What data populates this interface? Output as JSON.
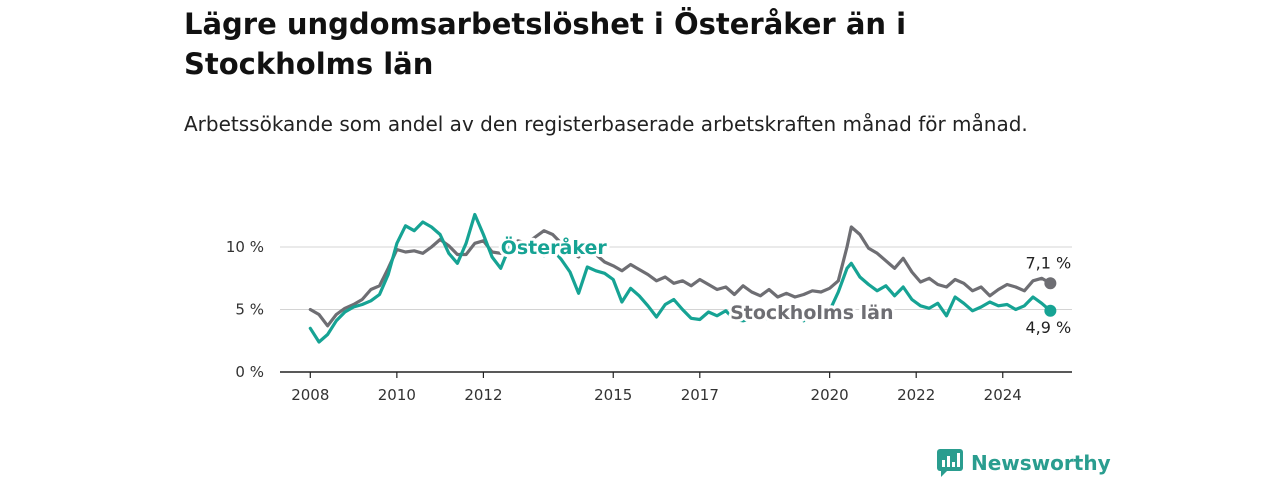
{
  "title": "Lägre ungdomsarbetslöshet i Österåker än i Stockholms län",
  "subtitle": "Arbetssökande som andel av den registerbaserade arbetskraften månad för månad.",
  "brand": {
    "name": "Newsworthy",
    "icon": "newsworthy-logo-icon",
    "color": "#2a9d8f"
  },
  "chart_data": {
    "type": "line",
    "x_axis": {
      "range": [
        2007.3,
        2025.6
      ],
      "ticks": [
        {
          "value": 2008,
          "label": "2008"
        },
        {
          "value": 2010,
          "label": "2010"
        },
        {
          "value": 2012,
          "label": "2012"
        },
        {
          "value": 2015,
          "label": "2015"
        },
        {
          "value": 2017,
          "label": "2017"
        },
        {
          "value": 2020,
          "label": "2020"
        },
        {
          "value": 2022,
          "label": "2022"
        },
        {
          "value": 2024,
          "label": "2024"
        }
      ]
    },
    "y_axis": {
      "range": [
        0,
        13.2
      ],
      "ticks": [
        {
          "value": 0,
          "label": "0 %"
        },
        {
          "value": 5,
          "label": "5 %"
        },
        {
          "value": 10,
          "label": "10 %"
        }
      ],
      "grid": true
    },
    "series": [
      {
        "name": "Stockholms län",
        "color": "#6e6e73",
        "end_label": "7,1 %",
        "points": [
          [
            2008.0,
            5.0
          ],
          [
            2008.2,
            4.6
          ],
          [
            2008.4,
            3.7
          ],
          [
            2008.6,
            4.6
          ],
          [
            2008.8,
            5.1
          ],
          [
            2009.0,
            5.4
          ],
          [
            2009.2,
            5.8
          ],
          [
            2009.4,
            6.6
          ],
          [
            2009.6,
            6.9
          ],
          [
            2009.8,
            8.3
          ],
          [
            2010.0,
            9.8
          ],
          [
            2010.2,
            9.6
          ],
          [
            2010.4,
            9.7
          ],
          [
            2010.6,
            9.5
          ],
          [
            2010.8,
            10.0
          ],
          [
            2011.0,
            10.6
          ],
          [
            2011.2,
            10.1
          ],
          [
            2011.4,
            9.4
          ],
          [
            2011.6,
            9.4
          ],
          [
            2011.8,
            10.3
          ],
          [
            2012.0,
            10.5
          ],
          [
            2012.2,
            9.6
          ],
          [
            2012.4,
            9.5
          ],
          [
            2012.6,
            9.8
          ],
          [
            2012.8,
            10.5
          ],
          [
            2013.0,
            10.3
          ],
          [
            2013.2,
            10.8
          ],
          [
            2013.4,
            11.3
          ],
          [
            2013.6,
            11.0
          ],
          [
            2013.8,
            10.3
          ],
          [
            2014.0,
            9.7
          ],
          [
            2014.2,
            9.2
          ],
          [
            2014.4,
            9.9
          ],
          [
            2014.6,
            9.4
          ],
          [
            2014.8,
            8.8
          ],
          [
            2015.0,
            8.5
          ],
          [
            2015.2,
            8.1
          ],
          [
            2015.4,
            8.6
          ],
          [
            2015.6,
            8.2
          ],
          [
            2015.8,
            7.8
          ],
          [
            2016.0,
            7.3
          ],
          [
            2016.2,
            7.6
          ],
          [
            2016.4,
            7.1
          ],
          [
            2016.6,
            7.3
          ],
          [
            2016.8,
            6.9
          ],
          [
            2017.0,
            7.4
          ],
          [
            2017.2,
            7.0
          ],
          [
            2017.4,
            6.6
          ],
          [
            2017.6,
            6.8
          ],
          [
            2017.8,
            6.2
          ],
          [
            2018.0,
            6.9
          ],
          [
            2018.2,
            6.4
          ],
          [
            2018.4,
            6.1
          ],
          [
            2018.6,
            6.6
          ],
          [
            2018.8,
            6.0
          ],
          [
            2019.0,
            6.3
          ],
          [
            2019.2,
            6.0
          ],
          [
            2019.4,
            6.2
          ],
          [
            2019.6,
            6.5
          ],
          [
            2019.8,
            6.4
          ],
          [
            2020.0,
            6.7
          ],
          [
            2020.2,
            7.3
          ],
          [
            2020.4,
            10.0
          ],
          [
            2020.5,
            11.6
          ],
          [
            2020.7,
            11.0
          ],
          [
            2020.9,
            9.9
          ],
          [
            2021.1,
            9.5
          ],
          [
            2021.3,
            8.9
          ],
          [
            2021.5,
            8.3
          ],
          [
            2021.7,
            9.1
          ],
          [
            2021.9,
            8.0
          ],
          [
            2022.1,
            7.2
          ],
          [
            2022.3,
            7.5
          ],
          [
            2022.5,
            7.0
          ],
          [
            2022.7,
            6.8
          ],
          [
            2022.9,
            7.4
          ],
          [
            2023.1,
            7.1
          ],
          [
            2023.3,
            6.5
          ],
          [
            2023.5,
            6.8
          ],
          [
            2023.7,
            6.1
          ],
          [
            2023.9,
            6.6
          ],
          [
            2024.1,
            7.0
          ],
          [
            2024.3,
            6.8
          ],
          [
            2024.5,
            6.5
          ],
          [
            2024.7,
            7.3
          ],
          [
            2024.9,
            7.5
          ],
          [
            2025.1,
            7.1
          ]
        ]
      },
      {
        "name": "Österåker",
        "color": "#16a394",
        "end_label": "4,9 %",
        "points": [
          [
            2008.0,
            3.5
          ],
          [
            2008.2,
            2.4
          ],
          [
            2008.4,
            3.0
          ],
          [
            2008.6,
            4.1
          ],
          [
            2008.8,
            4.8
          ],
          [
            2009.0,
            5.2
          ],
          [
            2009.2,
            5.4
          ],
          [
            2009.4,
            5.7
          ],
          [
            2009.6,
            6.2
          ],
          [
            2009.8,
            7.8
          ],
          [
            2010.0,
            10.3
          ],
          [
            2010.2,
            11.7
          ],
          [
            2010.4,
            11.3
          ],
          [
            2010.6,
            12.0
          ],
          [
            2010.8,
            11.6
          ],
          [
            2011.0,
            11.0
          ],
          [
            2011.2,
            9.5
          ],
          [
            2011.4,
            8.7
          ],
          [
            2011.6,
            10.3
          ],
          [
            2011.8,
            12.6
          ],
          [
            2012.0,
            11.0
          ],
          [
            2012.2,
            9.2
          ],
          [
            2012.4,
            8.3
          ],
          [
            2012.6,
            10.0
          ],
          [
            2012.8,
            9.6
          ],
          [
            2013.0,
            9.8
          ],
          [
            2013.2,
            10.0
          ],
          [
            2013.4,
            9.3
          ],
          [
            2013.6,
            9.8
          ],
          [
            2013.8,
            9.0
          ],
          [
            2014.0,
            8.0
          ],
          [
            2014.2,
            6.3
          ],
          [
            2014.4,
            8.4
          ],
          [
            2014.6,
            8.1
          ],
          [
            2014.8,
            7.9
          ],
          [
            2015.0,
            7.4
          ],
          [
            2015.2,
            5.6
          ],
          [
            2015.4,
            6.7
          ],
          [
            2015.6,
            6.1
          ],
          [
            2015.8,
            5.3
          ],
          [
            2016.0,
            4.4
          ],
          [
            2016.2,
            5.4
          ],
          [
            2016.4,
            5.8
          ],
          [
            2016.6,
            5.0
          ],
          [
            2016.8,
            4.3
          ],
          [
            2017.0,
            4.2
          ],
          [
            2017.2,
            4.8
          ],
          [
            2017.4,
            4.5
          ],
          [
            2017.6,
            4.9
          ],
          [
            2017.8,
            4.2
          ],
          [
            2018.0,
            4.1
          ],
          [
            2018.2,
            4.3
          ],
          [
            2018.4,
            4.5
          ],
          [
            2018.6,
            4.2
          ],
          [
            2018.8,
            4.6
          ],
          [
            2019.0,
            4.3
          ],
          [
            2019.2,
            4.6
          ],
          [
            2019.4,
            4.1
          ],
          [
            2019.6,
            4.8
          ],
          [
            2019.8,
            5.3
          ],
          [
            2020.0,
            4.9
          ],
          [
            2020.2,
            6.4
          ],
          [
            2020.4,
            8.3
          ],
          [
            2020.5,
            8.7
          ],
          [
            2020.7,
            7.6
          ],
          [
            2020.9,
            7.0
          ],
          [
            2021.1,
            6.5
          ],
          [
            2021.3,
            6.9
          ],
          [
            2021.5,
            6.1
          ],
          [
            2021.7,
            6.8
          ],
          [
            2021.9,
            5.8
          ],
          [
            2022.1,
            5.3
          ],
          [
            2022.3,
            5.1
          ],
          [
            2022.5,
            5.5
          ],
          [
            2022.7,
            4.5
          ],
          [
            2022.9,
            6.0
          ],
          [
            2023.1,
            5.5
          ],
          [
            2023.3,
            4.9
          ],
          [
            2023.5,
            5.2
          ],
          [
            2023.7,
            5.6
          ],
          [
            2023.9,
            5.3
          ],
          [
            2024.1,
            5.4
          ],
          [
            2024.3,
            5.0
          ],
          [
            2024.5,
            5.3
          ],
          [
            2024.7,
            6.0
          ],
          [
            2024.9,
            5.5
          ],
          [
            2025.1,
            4.9
          ]
        ]
      }
    ]
  }
}
